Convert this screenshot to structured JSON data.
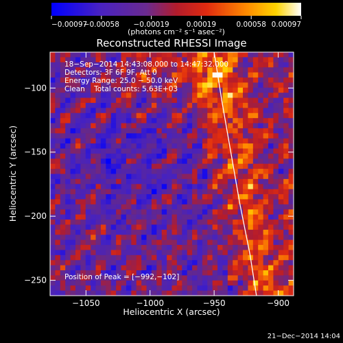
{
  "chart_data": {
    "type": "heatmap",
    "title": "Reconstructed RHESSI Image",
    "xlabel": "Heliocentric X (arcsec)",
    "ylabel": "Heliocentric Y (arcsec)",
    "xlim": [
      -1078,
      -888
    ],
    "ylim": [
      -262,
      -72
    ],
    "x_ticks": [
      -1050,
      -1000,
      -950,
      -900
    ],
    "y_ticks": [
      -100,
      -150,
      -200,
      -250
    ],
    "x_tick_labels": [
      "−1050",
      "−1000",
      "−950",
      "−900"
    ],
    "y_tick_labels": [
      "−100",
      "−150",
      "−200",
      "−250"
    ],
    "colorbar": {
      "units": "(photons cm⁻² s⁻¹ asec⁻²)",
      "tick_labels": [
        "−0.00097",
        "−0.00058",
        "−0.00019",
        "0.00019",
        "0.00058",
        "0.00097"
      ],
      "range": [
        -0.00097,
        0.00097
      ],
      "colors": [
        "#0000ff",
        "#6a2aa0",
        "#c81e1e",
        "#ff6a00",
        "#ffc800",
        "#ffffff"
      ]
    },
    "annotations": [
      "18−Sep−2014 14:43:08.000 to 14:47:32.000",
      "Detectors: 3F 6F 9F, Att 0",
      "Energy Range: 25.0 − 50.0 keV",
      "Clean    Total counts: 5.63E+03"
    ],
    "peak_label": "Position of Peak = [−992,−102]",
    "peak": [
      -992,
      -102
    ],
    "limb_points": [
      [
        -950,
        -72
      ],
      [
        -944,
        -110
      ],
      [
        -937,
        -150
      ],
      [
        -930,
        -190
      ],
      [
        -922,
        -230
      ],
      [
        -917,
        -262
      ]
    ]
  },
  "footer": {
    "timestamp": "21−Dec−2014 14:04"
  }
}
